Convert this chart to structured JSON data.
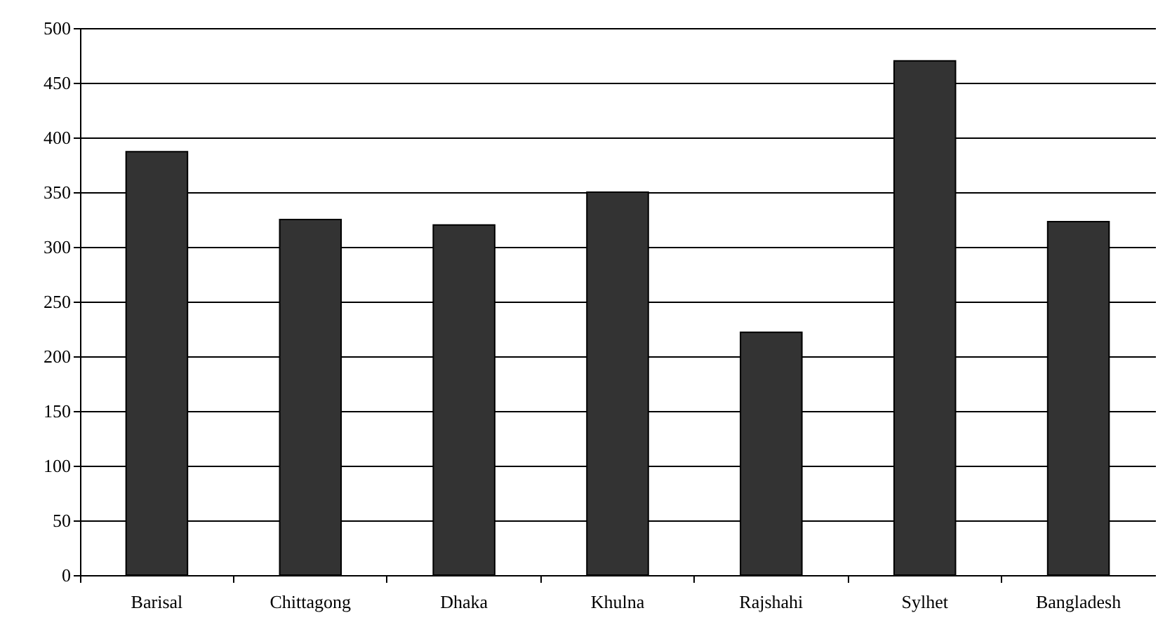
{
  "chart_data": {
    "type": "bar",
    "categories": [
      "Barisal",
      "Chittagong",
      "Dhaka",
      "Khulna",
      "Rajshahi",
      "Sylhet",
      "Bangladesh"
    ],
    "values": [
      387,
      325,
      320,
      350,
      222,
      470,
      323
    ],
    "color": "#333333",
    "ylim": [
      0,
      500
    ],
    "yticks": [
      0,
      50,
      100,
      150,
      200,
      250,
      300,
      350,
      400,
      450,
      500
    ],
    "grid": "y"
  }
}
